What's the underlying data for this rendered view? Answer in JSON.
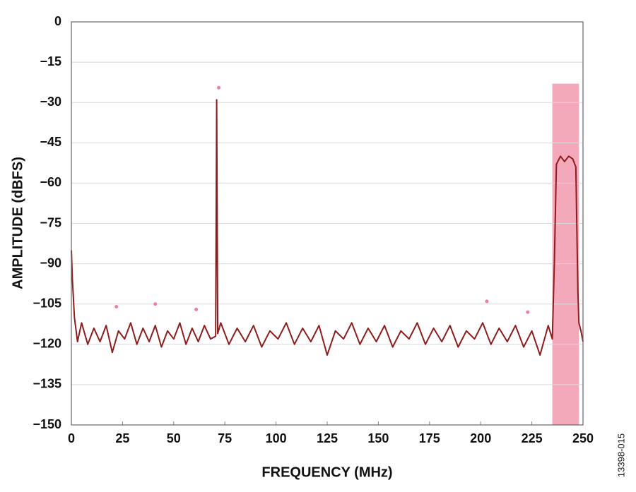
{
  "chart_data": {
    "type": "line",
    "xlabel": "FREQUENCY (MHz)",
    "ylabel": "AMPLITUDE (dBFS)",
    "note": "13398-015",
    "xlim": [
      0,
      250
    ],
    "xticks": [
      0,
      25,
      50,
      75,
      100,
      125,
      150,
      175,
      200,
      225,
      250
    ],
    "ylim": [
      -150,
      0
    ],
    "yticks": [
      {
        "value": -150,
        "label": "−150"
      },
      {
        "value": -135,
        "label": "−135"
      },
      {
        "value": -120,
        "label": "−120"
      },
      {
        "value": -105,
        "label": "−105"
      },
      {
        "value": -90,
        "label": "−90"
      },
      {
        "value": -75,
        "label": "−75"
      },
      {
        "value": -60,
        "label": "−60"
      },
      {
        "value": -45,
        "label": "−45"
      },
      {
        "value": -30,
        "label": "−30"
      },
      {
        "value": -15,
        "label": "−15"
      },
      0
    ],
    "grid": true,
    "highlight": {
      "x": [
        235,
        248
      ],
      "y": [
        -150,
        -23
      ],
      "color": "#f4a9bb"
    },
    "series": [
      {
        "color": "#8e1c1c",
        "x": [
          0,
          0.5,
          1.5,
          3,
          5,
          8,
          11,
          14,
          17,
          20,
          23,
          26,
          29,
          32,
          35,
          38,
          41,
          44,
          47,
          50,
          53,
          56,
          59,
          62,
          65,
          68,
          70.5,
          71,
          71.5,
          73,
          77,
          81,
          85,
          89,
          93,
          97,
          101,
          105,
          109,
          113,
          117,
          121,
          125,
          129,
          133,
          137,
          141,
          145,
          149,
          153,
          157,
          161,
          165,
          169,
          173,
          177,
          181,
          185,
          189,
          193,
          197,
          201,
          205,
          209,
          213,
          217,
          221,
          225,
          229,
          233,
          235,
          236,
          237,
          239,
          241,
          243,
          245,
          246.5,
          247.5,
          248,
          249,
          250
        ],
        "values": [
          -85,
          -96,
          -110,
          -119,
          -112,
          -120,
          -114,
          -119,
          -113,
          -123,
          -115,
          -118,
          -112,
          -120,
          -114,
          -119,
          -113,
          -121,
          -115,
          -118,
          -112,
          -120,
          -114,
          -119,
          -113,
          -118,
          -117,
          -29,
          -116,
          -112,
          -120,
          -114,
          -119,
          -113,
          -121,
          -115,
          -118,
          -112,
          -120,
          -114,
          -119,
          -113,
          -124,
          -115,
          -118,
          -112,
          -120,
          -114,
          -119,
          -113,
          -121,
          -115,
          -118,
          -112,
          -120,
          -114,
          -119,
          -113,
          -121,
          -115,
          -118,
          -112,
          -120,
          -114,
          -119,
          -113,
          -121,
          -115,
          -124,
          -113,
          -118,
          -90,
          -53,
          -50,
          -52,
          -50,
          -51,
          -54,
          -100,
          -112,
          -115,
          -119
        ]
      }
    ],
    "markers": {
      "color": "#ef7fa0",
      "x": [
        72,
        22,
        41,
        61,
        203,
        223
      ],
      "values": [
        -24.5,
        -106,
        -105,
        -107,
        -104,
        -108
      ]
    }
  }
}
